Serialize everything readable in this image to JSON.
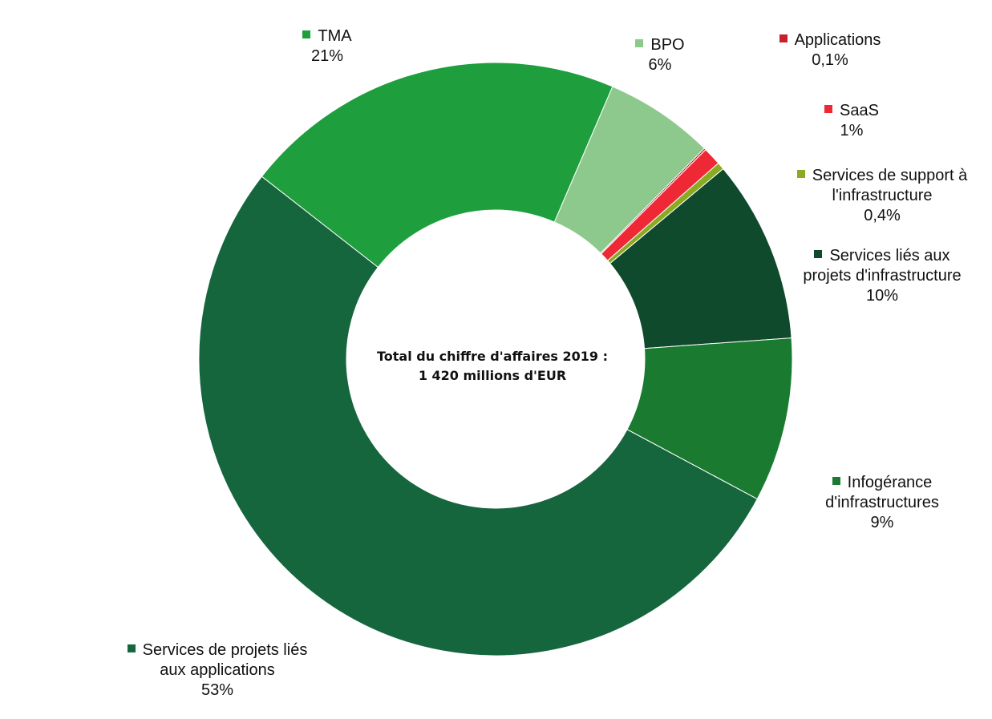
{
  "chart_data": {
    "type": "pie",
    "variant": "donut",
    "center_text": [
      "Total du chiffre d'affaires 2019 :",
      "1 420 millions d'EUR"
    ],
    "start_angle_deg": -52,
    "slices": [
      {
        "name": [
          "TMA"
        ],
        "value_label": "21%",
        "value": 21,
        "color": "#1e9e3c"
      },
      {
        "name": [
          "BPO"
        ],
        "value_label": "6%",
        "value": 6,
        "color": "#8dc98c"
      },
      {
        "name": [
          "Applications"
        ],
        "value_label": "0,1%",
        "value": 0.1,
        "color": "#c8202e"
      },
      {
        "name": [
          "SaaS"
        ],
        "value_label": "1%",
        "value": 1,
        "color": "#ee2834"
      },
      {
        "name": [
          "Services de support à",
          "l'infrastructure"
        ],
        "value_label": "0,4%",
        "value": 0.4,
        "color": "#8aaa22"
      },
      {
        "name": [
          "Services liés aux",
          "projets d'infrastructure"
        ],
        "value_label": "10%",
        "value": 10,
        "color": "#0f4a2c"
      },
      {
        "name": [
          "Infogérance",
          "d'infrastructures"
        ],
        "value_label": "9%",
        "value": 9,
        "color": "#1a7a30"
      },
      {
        "name": [
          "Services de projets liés",
          "aux applications"
        ],
        "value_label": "53%",
        "value": 53,
        "color": "#15653d"
      }
    ]
  }
}
